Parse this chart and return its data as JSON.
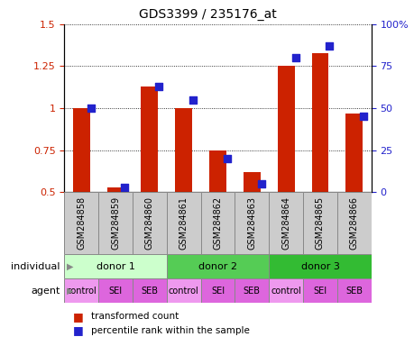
{
  "title": "GDS3399 / 235176_at",
  "samples": [
    "GSM284858",
    "GSM284859",
    "GSM284860",
    "GSM284861",
    "GSM284862",
    "GSM284863",
    "GSM284864",
    "GSM284865",
    "GSM284866"
  ],
  "transformed_count": [
    1.0,
    0.53,
    1.13,
    1.0,
    0.75,
    0.62,
    1.25,
    1.33,
    0.97
  ],
  "percentile_rank": [
    50,
    3,
    63,
    55,
    20,
    5,
    80,
    87,
    45
  ],
  "ylim_left": [
    0.5,
    1.5
  ],
  "ylim_right": [
    0,
    100
  ],
  "yticks_left": [
    0.5,
    0.75,
    1.0,
    1.25,
    1.5
  ],
  "yticks_right": [
    0,
    25,
    50,
    75,
    100
  ],
  "ytick_labels_left": [
    "0.5",
    "0.75",
    "1",
    "1.25",
    "1.5"
  ],
  "ytick_labels_right": [
    "0",
    "25",
    "50",
    "75",
    "100%"
  ],
  "bar_color": "#cc2200",
  "dot_color": "#2222cc",
  "sample_bg_color": "#cccccc",
  "donors": [
    {
      "label": "donor 1",
      "start": 0,
      "end": 3,
      "color": "#ccffcc"
    },
    {
      "label": "donor 2",
      "start": 3,
      "end": 6,
      "color": "#55cc55"
    },
    {
      "label": "donor 3",
      "start": 6,
      "end": 9,
      "color": "#33bb33"
    }
  ],
  "agents": [
    "control",
    "SEI",
    "SEB",
    "control",
    "SEI",
    "SEB",
    "control",
    "SEI",
    "SEB"
  ],
  "agent_color_light": "#ee99ee",
  "agent_color_dark": "#dd66dd",
  "agent_color_map": {
    "control": "#ee99ee",
    "SEI": "#dd66dd",
    "SEB": "#dd66dd"
  },
  "legend_bar_label": "transformed count",
  "legend_dot_label": "percentile rank within the sample",
  "individual_label": "individual",
  "agent_label": "agent",
  "bar_width": 0.5
}
